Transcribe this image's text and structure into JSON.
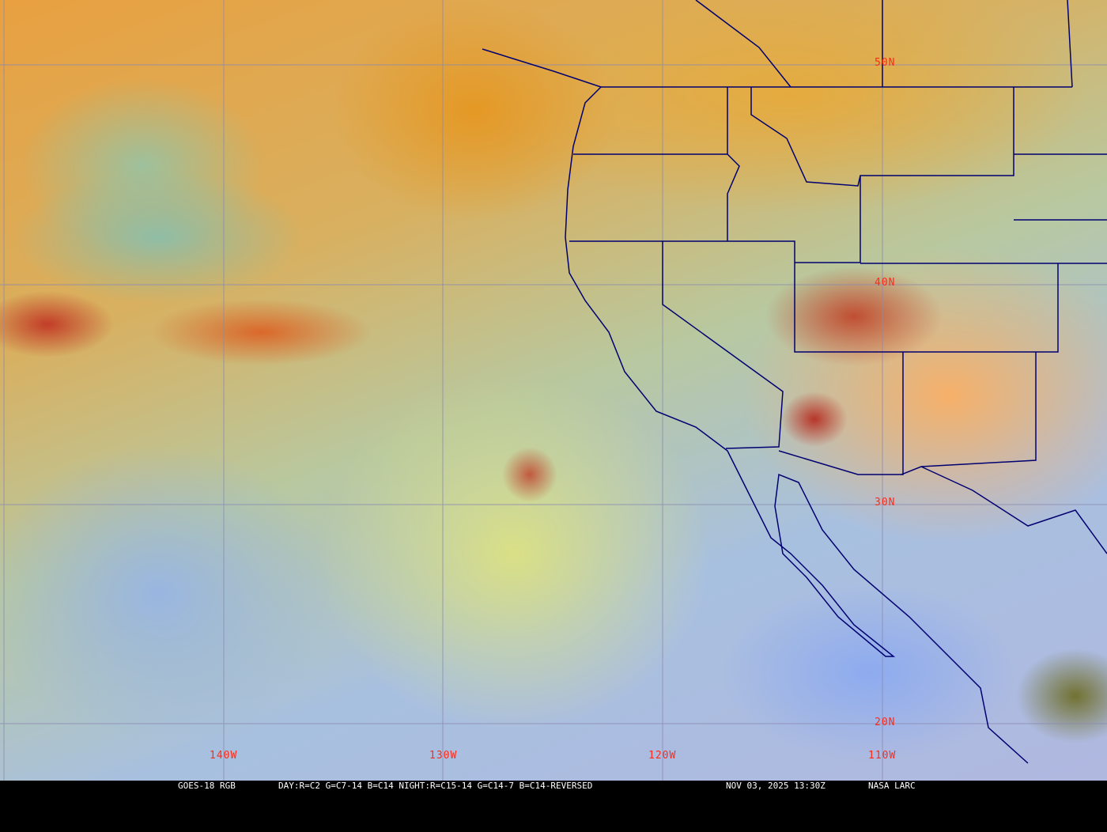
{
  "image": {
    "type": "satellite-rgb-composite",
    "colors": {
      "grid": "#8a8ab0",
      "borders": "#000070",
      "labels": "#ff2a1a",
      "caption_bg": "#000000",
      "caption_text": "#ffffff"
    }
  },
  "grid_labels": {
    "lat": [
      "50N",
      "40N",
      "30N",
      "20N"
    ],
    "lon": [
      "140W",
      "130W",
      "120W",
      "110W"
    ]
  },
  "caption": {
    "satellite": "GOES-18 RGB",
    "recipe": "DAY:R=C2 G=C7-14 B=C14 NIGHT:R=C15-14 G=C14-7 B=C14-REVERSED",
    "timestamp": "NOV 03, 2025 13:30Z",
    "source": "NASA LARC"
  }
}
